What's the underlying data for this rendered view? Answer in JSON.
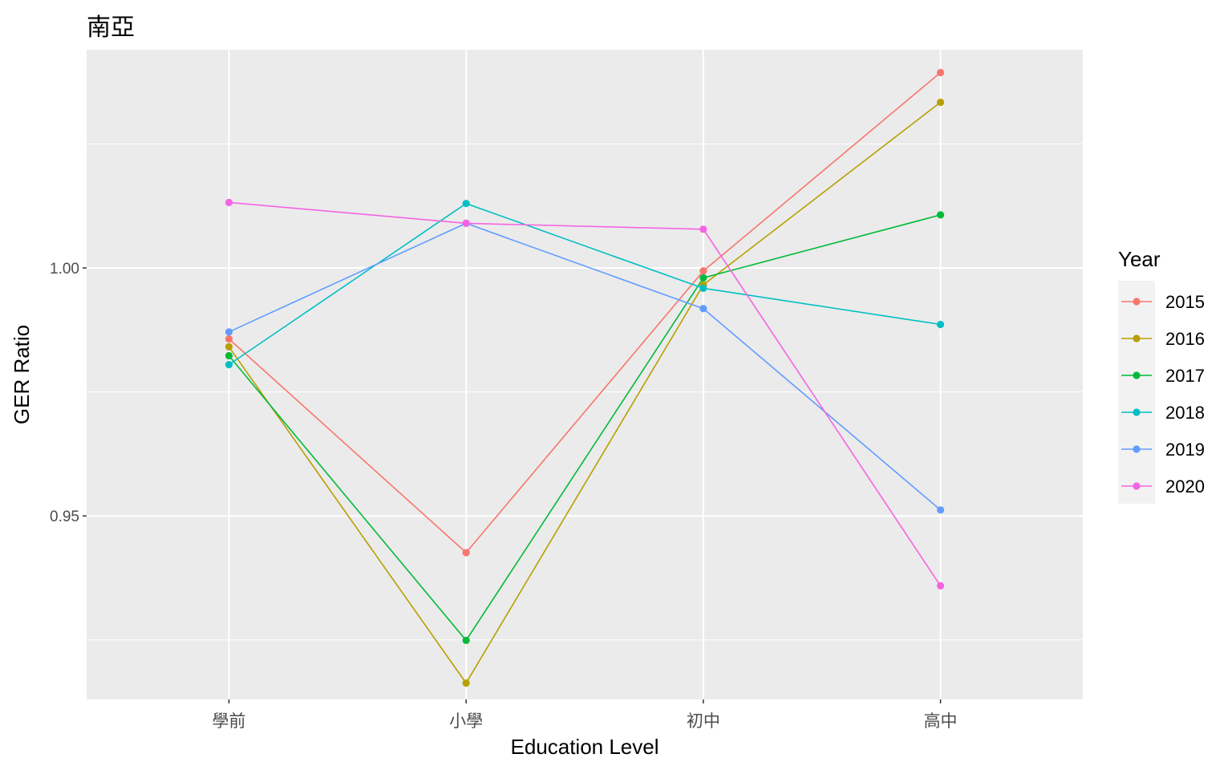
{
  "chart_data": {
    "type": "line",
    "title": "南亞",
    "xlabel": "Education Level",
    "ylabel": "GER Ratio",
    "categories": [
      "學前",
      "小學",
      "初中",
      "高中"
    ],
    "ylim": [
      0.913,
      1.044
    ],
    "yticks": [
      0.95,
      1.0
    ],
    "ytick_labels": [
      "0.95",
      "1.00"
    ],
    "grid": true,
    "legend": {
      "title": "Year",
      "position": "right"
    },
    "series": [
      {
        "name": "2015",
        "color": "#F8766D",
        "values": [
          0.9857,
          0.9426,
          0.9994,
          1.0394
        ]
      },
      {
        "name": "2016",
        "color": "#B79F00",
        "values": [
          0.9841,
          0.9163,
          0.9966,
          1.0334
        ]
      },
      {
        "name": "2017",
        "color": "#00BA38",
        "values": [
          0.9823,
          0.9249,
          0.998,
          1.0107
        ]
      },
      {
        "name": "2018",
        "color": "#00BFC4",
        "values": [
          0.9805,
          1.013,
          0.9959,
          0.9886
        ]
      },
      {
        "name": "2019",
        "color": "#619CFF",
        "values": [
          0.9871,
          1.009,
          0.9918,
          0.9512
        ]
      },
      {
        "name": "2020",
        "color": "#F564E3",
        "values": [
          1.0132,
          1.009,
          1.0078,
          0.9359
        ]
      }
    ]
  }
}
